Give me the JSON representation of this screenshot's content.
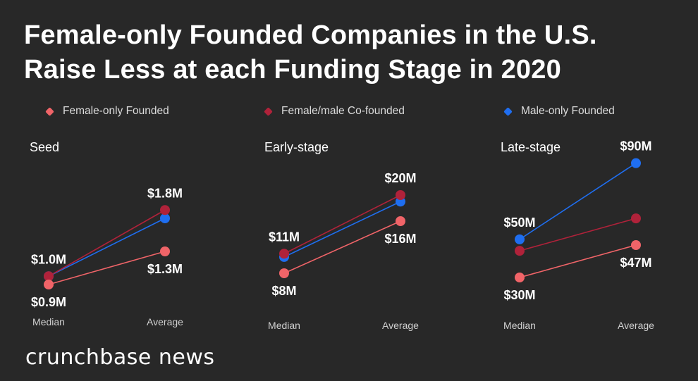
{
  "title_line1": "Female-only Founded Companies in the U.S.",
  "title_line2": "Raise Less at each Funding Stage in 2020",
  "legend": [
    {
      "label": "Female-only Founded",
      "color": "#f06468"
    },
    {
      "label": "Female/male Co-founded",
      "color": "#b0223a"
    },
    {
      "label": "Male-only Founded",
      "color": "#1f6ef0"
    }
  ],
  "brand": "crunchbase news",
  "chart_data": [
    {
      "type": "line",
      "title": "Seed",
      "categories": [
        "Median",
        "Average"
      ],
      "unit": "$M",
      "series": [
        {
          "name": "Female-only Founded",
          "values": [
            0.9,
            1.3
          ],
          "color": "#f06468"
        },
        {
          "name": "Female/male Co-founded",
          "values": [
            1.0,
            1.8
          ],
          "color": "#b0223a"
        },
        {
          "name": "Male-only Founded",
          "values": [
            1.0,
            1.7
          ],
          "color": "#1f6ef0"
        }
      ],
      "labels": [
        {
          "text": "$1.0M",
          "series": 1,
          "point": 0,
          "pos": "above"
        },
        {
          "text": "$0.9M",
          "series": 0,
          "point": 0,
          "pos": "below"
        },
        {
          "text": "$1.8M",
          "series": 1,
          "point": 1,
          "pos": "above"
        },
        {
          "text": "$1.3M",
          "series": 0,
          "point": 1,
          "pos": "below"
        }
      ]
    },
    {
      "type": "line",
      "title": "Early-stage",
      "categories": [
        "Median",
        "Average"
      ],
      "unit": "$M",
      "series": [
        {
          "name": "Female-only Founded",
          "values": [
            8,
            16
          ],
          "color": "#f06468"
        },
        {
          "name": "Female/male Co-founded",
          "values": [
            11,
            20
          ],
          "color": "#b0223a"
        },
        {
          "name": "Male-only Founded",
          "values": [
            10.5,
            19
          ],
          "color": "#1f6ef0"
        }
      ],
      "labels": [
        {
          "text": "$11M",
          "series": 1,
          "point": 0,
          "pos": "above"
        },
        {
          "text": "$8M",
          "series": 0,
          "point": 0,
          "pos": "below"
        },
        {
          "text": "$20M",
          "series": 1,
          "point": 1,
          "pos": "above"
        },
        {
          "text": "$16M",
          "series": 0,
          "point": 1,
          "pos": "below"
        }
      ]
    },
    {
      "type": "line",
      "title": "Late-stage",
      "categories": [
        "Median",
        "Average"
      ],
      "unit": "$M",
      "series": [
        {
          "name": "Female-only Founded",
          "values": [
            30,
            47
          ],
          "color": "#f06468"
        },
        {
          "name": "Female/male Co-founded",
          "values": [
            44,
            61
          ],
          "color": "#b0223a"
        },
        {
          "name": "Male-only Founded",
          "values": [
            50,
            90
          ],
          "color": "#1f6ef0"
        }
      ],
      "labels": [
        {
          "text": "$50M",
          "series": 2,
          "point": 0,
          "pos": "above"
        },
        {
          "text": "$30M",
          "series": 0,
          "point": 0,
          "pos": "below"
        },
        {
          "text": "$90M",
          "series": 2,
          "point": 1,
          "pos": "above"
        },
        {
          "text": "$47M",
          "series": 0,
          "point": 1,
          "pos": "below"
        }
      ]
    }
  ]
}
